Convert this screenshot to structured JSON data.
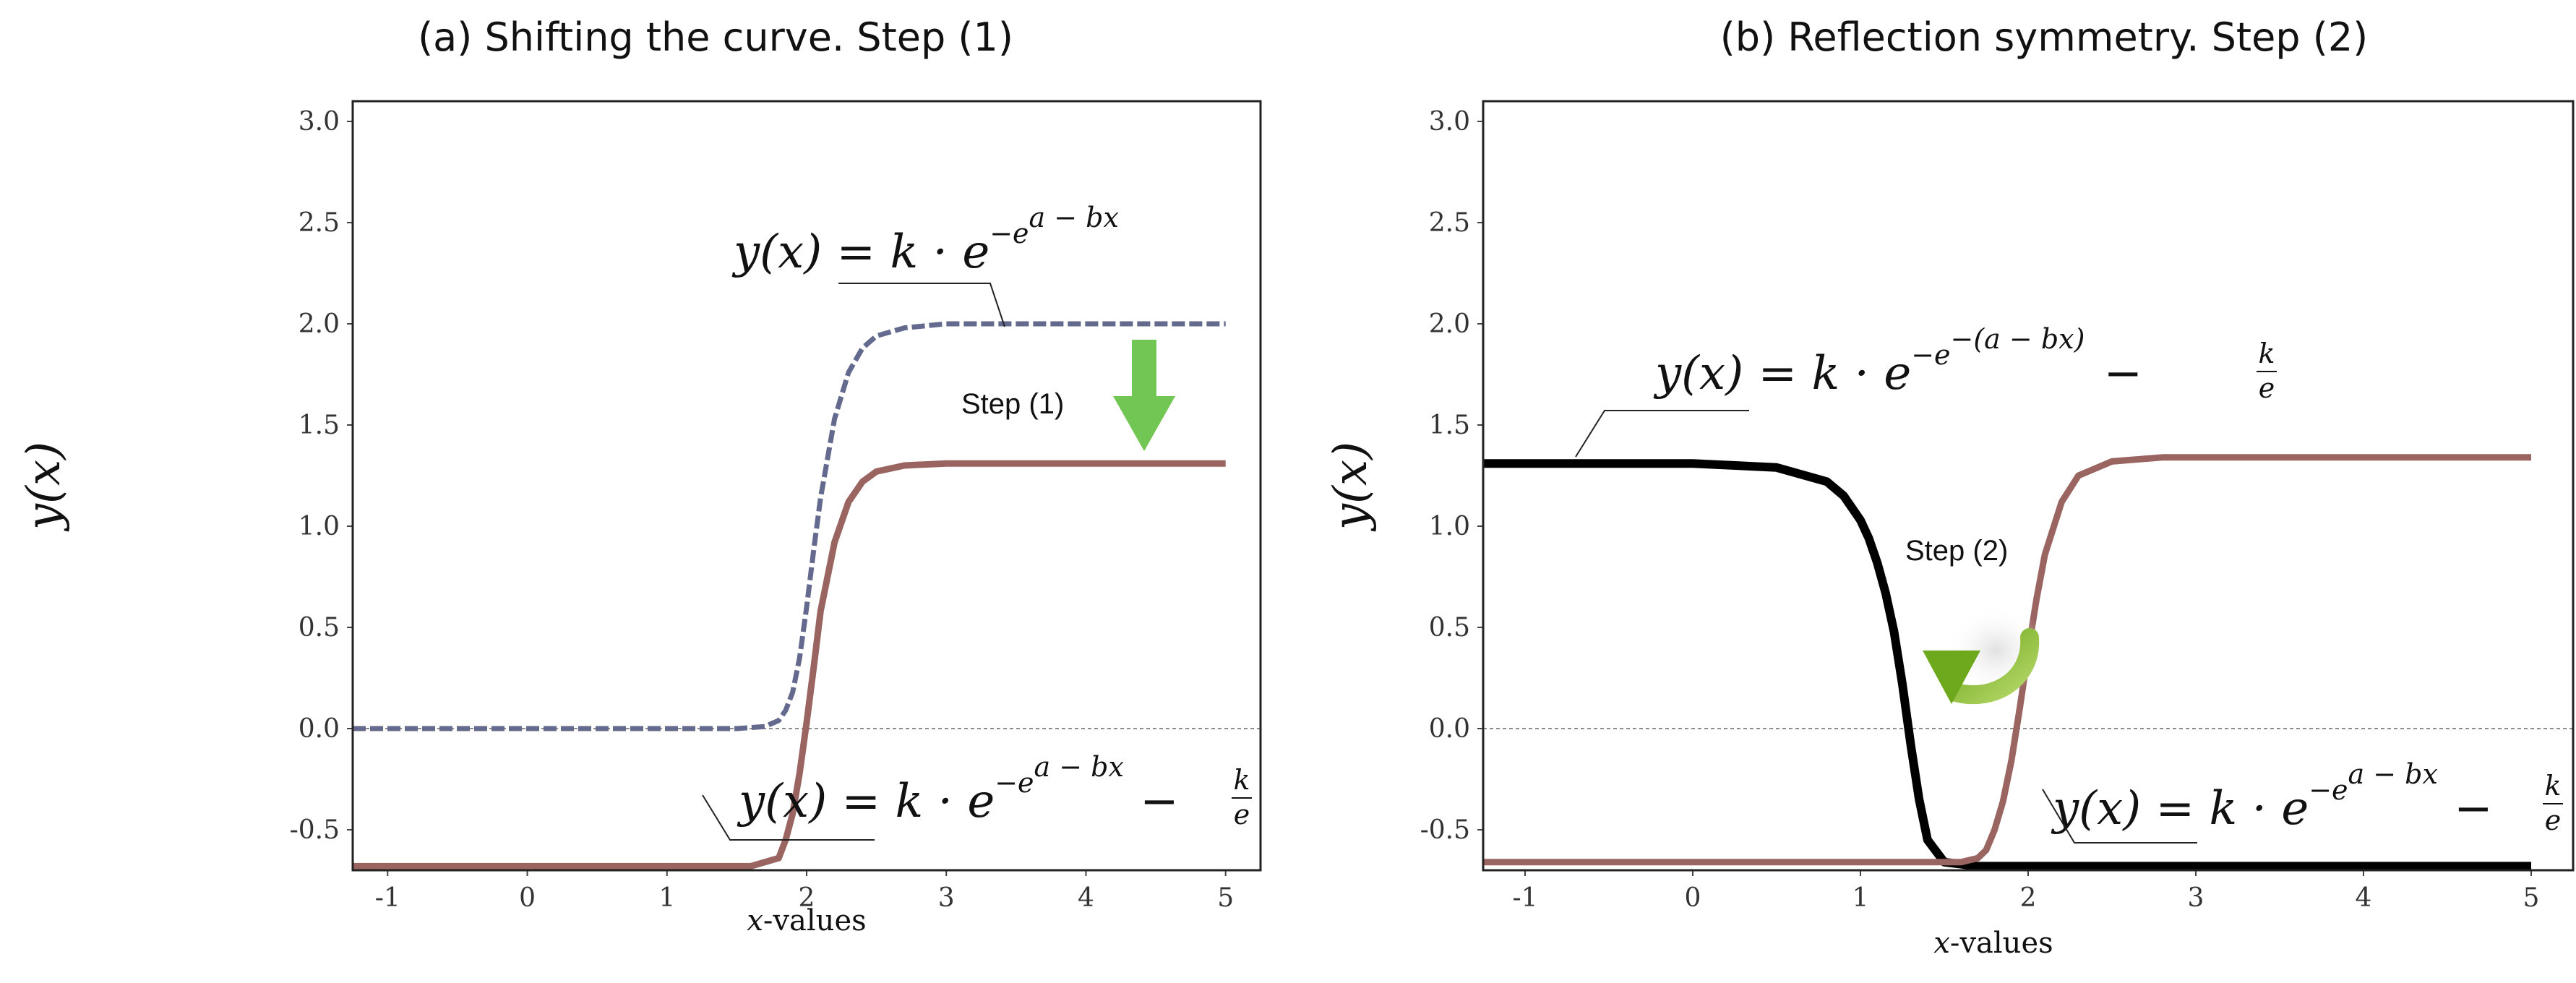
{
  "colors": {
    "dashed_curve": "#636a8e",
    "shifted_curve": "#9a6460",
    "reflected_curve": "#000000",
    "step1_arrow": "#72c653",
    "step2_arrow": "#8cbb2a"
  },
  "chart_data": [
    {
      "type": "line",
      "title": "(a) Shifting the curve. Step (1)",
      "xlabel_var": "x",
      "xlabel_rest": "-values",
      "ylabel": "y(x)",
      "xlim": [
        -1.25,
        5.25
      ],
      "ylim": [
        -0.7,
        3.1
      ],
      "xticks": [
        -1,
        0,
        1,
        2,
        3,
        4,
        5
      ],
      "yticks": [
        -0.5,
        0.0,
        0.5,
        1.0,
        1.5,
        2.0,
        2.5,
        3.0
      ],
      "xtick_labels": [
        "-1",
        "0",
        "1",
        "2",
        "3",
        "4",
        "5"
      ],
      "ytick_labels": [
        "-0.5",
        "0.0",
        "0.5",
        "1.0",
        "1.5",
        "2.0",
        "2.5",
        "3.0"
      ],
      "reference_line_y": 0.0,
      "series": [
        {
          "style": "dashed",
          "color": "#636a8e",
          "x": [
            -1.25,
            1.5,
            1.7,
            1.8,
            1.85,
            1.9,
            1.95,
            2.0,
            2.05,
            2.1,
            2.2,
            2.3,
            2.4,
            2.5,
            2.7,
            3.0,
            3.5,
            5.0
          ],
          "y": [
            0.0,
            0.0,
            0.01,
            0.04,
            0.09,
            0.18,
            0.35,
            0.6,
            0.88,
            1.14,
            1.53,
            1.76,
            1.88,
            1.94,
            1.98,
            2.0,
            2.0,
            2.0
          ]
        },
        {
          "style": "solid",
          "color": "#9a6460",
          "x": [
            -1.25,
            1.6,
            1.8,
            1.85,
            1.9,
            1.95,
            2.0,
            2.05,
            2.1,
            2.2,
            2.3,
            2.4,
            2.5,
            2.7,
            3.0,
            3.5,
            5.0
          ],
          "y": [
            -0.68,
            -0.68,
            -0.64,
            -0.55,
            -0.42,
            -0.22,
            0.03,
            0.3,
            0.58,
            0.92,
            1.12,
            1.22,
            1.27,
            1.3,
            1.31,
            1.31,
            1.31
          ]
        }
      ],
      "annotations": {
        "eq_top": {
          "base": "y(x) = k · e",
          "exp": "−e",
          "exp2": "a − bx"
        },
        "eq_bottom": {
          "base": "y(x) = k · e",
          "exp": "−e",
          "exp2": "a − bx",
          "tail": "−",
          "frac_num": "k",
          "frac_den": "e"
        },
        "step_label": "Step (1)"
      }
    },
    {
      "type": "line",
      "title": "(b) Reflection symmetry. Step (2)",
      "xlabel_var": "x",
      "xlabel_rest": "-values",
      "ylabel": "y(x)",
      "xlim": [
        -1.25,
        5.25
      ],
      "ylim": [
        -0.7,
        3.1
      ],
      "xticks": [
        -1,
        0,
        1,
        2,
        3,
        4,
        5
      ],
      "yticks": [
        -0.5,
        0.0,
        0.5,
        1.0,
        1.5,
        2.0,
        2.5,
        3.0
      ],
      "xtick_labels": [
        "-1",
        "0",
        "1",
        "2",
        "3",
        "4",
        "5"
      ],
      "ytick_labels": [
        "-0.5",
        "0.0",
        "0.5",
        "1.0",
        "1.5",
        "2.0",
        "2.5",
        "3.0"
      ],
      "reference_line_y": 0.0,
      "series": [
        {
          "style": "solid-thick",
          "color": "#000000",
          "x": [
            -1.25,
            0.0,
            0.5,
            0.8,
            0.9,
            1.0,
            1.05,
            1.1,
            1.15,
            1.2,
            1.25,
            1.3,
            1.35,
            1.4,
            1.5,
            1.7,
            2.0,
            5.0
          ],
          "y": [
            1.31,
            1.31,
            1.29,
            1.22,
            1.15,
            1.03,
            0.94,
            0.82,
            0.67,
            0.48,
            0.22,
            -0.08,
            -0.35,
            -0.55,
            -0.66,
            -0.68,
            -0.68,
            -0.68
          ]
        },
        {
          "style": "solid",
          "color": "#9a6460",
          "x": [
            -1.25,
            1.6,
            1.7,
            1.75,
            1.8,
            1.85,
            1.9,
            1.95,
            2.0,
            2.05,
            2.1,
            2.2,
            2.3,
            2.5,
            2.8,
            3.2,
            5.0
          ],
          "y": [
            -0.66,
            -0.66,
            -0.64,
            -0.6,
            -0.5,
            -0.36,
            -0.16,
            0.1,
            0.38,
            0.64,
            0.86,
            1.12,
            1.25,
            1.32,
            1.34,
            1.34,
            1.34
          ]
        }
      ],
      "annotations": {
        "eq_top": {
          "base": "y(x) = k · e",
          "exp": "−e",
          "exp2": "−(a − bx)",
          "tail": "−",
          "frac_num": "k",
          "frac_den": "e"
        },
        "eq_bottom": {
          "base": "y(x) = k · e",
          "exp": "−e",
          "exp2": "a − bx",
          "tail": "−",
          "frac_num": "k",
          "frac_den": "e"
        },
        "step_label": "Step (2)"
      }
    }
  ]
}
